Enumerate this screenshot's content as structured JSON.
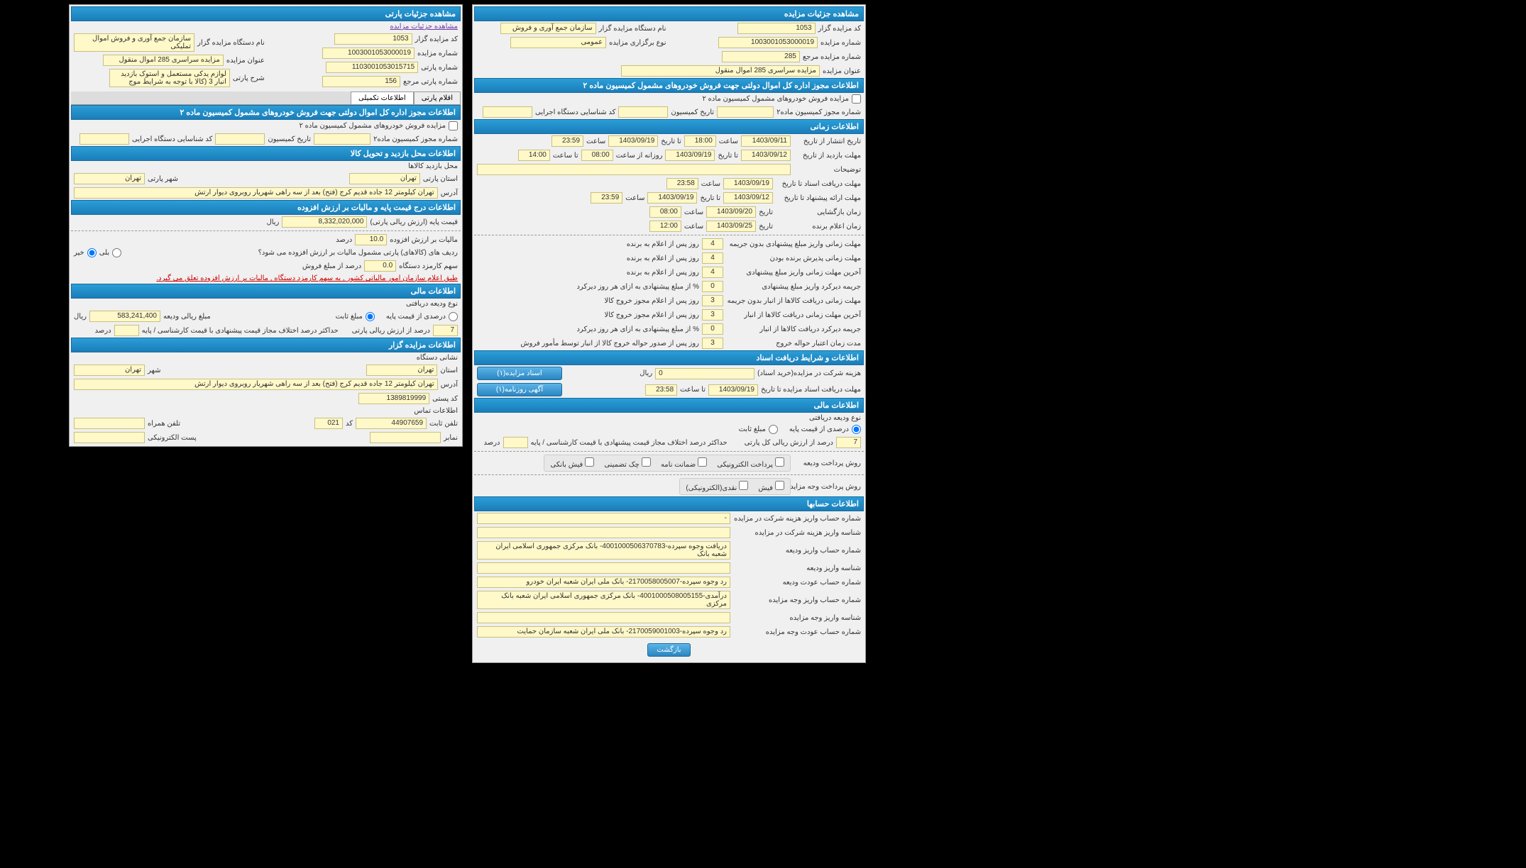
{
  "right": {
    "title": "مشاهده جزئیات مزایده",
    "auctioneer_code": {
      "label": "کد مزایده گزار",
      "value": "1053"
    },
    "auctioneer_name": {
      "label": "نام دستگاه مزایده گزار",
      "value": "سازمان جمع آوری و فروش"
    },
    "auction_number": {
      "label": "شماره مزایده",
      "value": "1003001053000019"
    },
    "auction_type": {
      "label": "نوع برگزاری مزایده",
      "value": "عمومی"
    },
    "ref_number": {
      "label": "شماره مزایده مرجع",
      "value": "285"
    },
    "auction_title": {
      "label": "عنوان مزایده",
      "value": "مزایده سراسری 285 اموال منقول"
    },
    "section_authority": "اطلاعات مجوز اداره کل اموال دولتی جهت فروش خودروهای مشمول کمیسیون ماده ۲",
    "auth_checkbox": "مزایده فروش خودروهای مشمول کمیسیون ماده ۲",
    "auth_num": {
      "label": "شماره مجوز کمیسیون ماده۲",
      "value": ""
    },
    "comm_date": {
      "label": "تاریخ کمیسیون",
      "value": ""
    },
    "exec_code": {
      "label": "کد شناسایی دستگاه اجرایی",
      "value": ""
    },
    "section_time": "اطلاعات زمانی",
    "publish": {
      "label": "تاریخ انتشار از تاریخ",
      "d1": "1403/09/11",
      "t1_label": "ساعت",
      "t1": "18:00"
    },
    "visit": {
      "label": "مهلت بازدید از تاریخ",
      "d1": "1403/09/12",
      "to": "تا تاریخ",
      "d2": "1403/09/19",
      "daily": "روزانه از ساعت",
      "t1": "08:00",
      "to_t": "تا ساعت",
      "t2": "23:59"
    },
    "desc": {
      "label": "توضیحات",
      "value": "14:00"
    },
    "doc_rcv": {
      "label": "مهلت دریافت اسناد تا تاریخ",
      "d": "1403/09/19",
      "t_label": "ساعت",
      "t": "23:58"
    },
    "offer": {
      "label": "مهلت ارائه پیشنهاد تا تاریخ",
      "d1": "1403/09/12",
      "to": "تا تاریخ",
      "d2": "1403/09/19",
      "t_label": "ساعت",
      "t": "23:59"
    },
    "open": {
      "label": "زمان بازگشایی",
      "d": "1403/09/20",
      "t_label": "تاریخ",
      "t": "08:00",
      "t2_label": "ساعت"
    },
    "announce": {
      "label": "زمان اعلام برنده",
      "d": "1403/09/25",
      "t_label": "تاریخ",
      "t": "12:00",
      "t2_label": "ساعت"
    },
    "deadlines": [
      {
        "label": "مهلت زمانی واریز مبلغ پیشنهادی بدون جریمه",
        "v": "4",
        "suffix": "روز پس از اعلام به برنده"
      },
      {
        "label": "مهلت زمانی پذیرش برنده بودن",
        "v": "4",
        "suffix": "روز پس از اعلام به برنده"
      },
      {
        "label": "آخرین مهلت زمانی واریز مبلغ پیشنهادی",
        "v": "4",
        "suffix": "روز پس از اعلام به برنده"
      },
      {
        "label": "جریمه دیرکرد واریز مبلغ پیشنهادی",
        "v": "0",
        "suffix": "% از مبلغ پیشنهادی به ازای هر روز دیرکرد"
      },
      {
        "label": "مهلت زمانی دریافت کالاها از انبار بدون جریمه",
        "v": "3",
        "suffix": "روز پس از اعلام مجوز خروج کالا"
      },
      {
        "label": "آخرین مهلت زمانی دریافت کالاها از انبار",
        "v": "3",
        "suffix": "روز پس از اعلام مجوز خروج کالا"
      },
      {
        "label": "جریمه دیرکرد دریافت کالاها از انبار",
        "v": "0",
        "suffix": "% از مبلغ پیشنهادی به ازای هر روز دیرکرد"
      },
      {
        "label": "مدت زمان اعتبار حواله خروج",
        "v": "3",
        "suffix": "روز پس از صدور حواله خروج کالا از انبار توسط مأمور فروش"
      }
    ],
    "section_docs": "اطلاعات و شرایط دریافت اسناد",
    "doc_cost": {
      "label": "هزینه شرکت در مزایده(خرید اسناد)",
      "value": "0",
      "unit": "ریال"
    },
    "doc_deadline": {
      "label": "مهلت دریافت اسناد مزایده تا تاریخ",
      "d": "1403/09/19",
      "t_label": "تا ساعت",
      "t": "23:58"
    },
    "btn_docs": "اسناد مزایده(۱)",
    "btn_news": "آگهی روزنامه(۱)",
    "section_fin": "اطلاعات مالی",
    "deposit_type": {
      "label": "نوع ودیعه دریافتی"
    },
    "deposit_radio": {
      "opt1": "درصدی از قیمت پایه",
      "opt2": "مبلغ ثابت"
    },
    "deposit_pct": {
      "v": "7",
      "suffix": "درصد از ارزش ریالی کل پارتی",
      "extra": "حداکثر درصد اختلاف مجاز قیمت پیشنهادی با قیمت کارشناسی / پایه",
      "extra_v": "",
      "extra_unit": "درصد"
    },
    "pay_deposit": {
      "label": "روش پرداخت ودیعه"
    },
    "pay_deposit_opts": [
      "پرداخت الکترونیکی",
      "ضمانت نامه",
      "چک تضمینی",
      "فیش بانکی"
    ],
    "pay_auction": {
      "label": "روش پرداخت وجه مزایده"
    },
    "pay_auction_opts": [
      "فیش",
      "نقدی(الکترونیکی)"
    ],
    "section_accounts": "اطلاعات حسابها",
    "accounts": [
      {
        "label": "شماره حساب واریز هزینه شرکت در مزایده",
        "value": "-"
      },
      {
        "label": "شناسه واریز هزینه شرکت در مزایده",
        "value": ""
      },
      {
        "label": "شماره حساب واریز ودیعه",
        "value": "دریافت وجوه سپرده-4001000506370783- بانک مرکزی جمهوری اسلامی ایران شعبه بانک"
      },
      {
        "label": "شناسه واریز ودیعه",
        "value": ""
      },
      {
        "label": "شماره حساب عودت ودیعه",
        "value": "رد وجوه سپرده-2170058005007- بانک ملی ایران شعبه ایران خودرو"
      },
      {
        "label": "شماره حساب واریز وجه مزایده",
        "value": "درآمدی-4001000508005155- بانک مرکزی جمهوری اسلامی ایران شعبه بانک مرکزی"
      },
      {
        "label": "شناسه واریز وجه مزایده",
        "value": ""
      },
      {
        "label": "شماره حساب عودت وجه مزایده",
        "value": "رد وجوه سپرده-2170059001003- بانک ملی ایران شعبه سازمان حمایت"
      }
    ],
    "btn_back": "بازگشت"
  },
  "left": {
    "title": "مشاهده جزئیات پارتی",
    "link": "مشاهده جزئیات مزایده",
    "auctioneer_code": {
      "label": "کد مزایده گزار",
      "value": "1053"
    },
    "auctioneer_name": {
      "label": "نام دستگاه مزایده گزار",
      "value": "سازمان جمع آوری و فروش اموال تملیکی"
    },
    "auction_number": {
      "label": "شماره مزایده",
      "value": "1003001053000019"
    },
    "auction_title": {
      "label": "عنوان مزایده",
      "value": "مزایده سراسری 285 اموال منقول"
    },
    "party_number": {
      "label": "شماره پارتی",
      "value": "1103001053015715"
    },
    "party_desc": {
      "label": "شرح پارتی",
      "value": "لوازم یدکی مستعمل و استوک بازدید انبار 3 (کالا با توجه به شرایط موج"
    },
    "ref_party": {
      "label": "شماره پارتی مرجع",
      "value": "156"
    },
    "tab1": "اقلام پارتی",
    "tab2": "اطلاعات تکمیلی",
    "section_authority": "اطلاعات مجوز اداره کل اموال دولتی جهت فروش خودروهای مشمول کمیسیون ماده ۲",
    "auth_checkbox": "مزایده فروش خودروهای مشمول کمیسیون ماده ۲",
    "auth_num": {
      "label": "شماره مجوز کمیسیون ماده۲",
      "value": ""
    },
    "comm_date": {
      "label": "تاریخ کمیسیون",
      "value": ""
    },
    "exec_code": {
      "label": "کد شناسایی دستگاه اجرایی",
      "value": ""
    },
    "section_visit": "اطلاعات محل بازدید و تحویل کالا",
    "visit_loc": {
      "label": "محل بازدید کالاها"
    },
    "province": {
      "label": "استان پارتی",
      "value": "تهران"
    },
    "city": {
      "label": "شهر پارتی",
      "value": "تهران"
    },
    "addr": {
      "label": "آدرس",
      "value": "تهران کیلومتر 12 جاده قدیم کرج (فتح) بعد از سه راهی شهریار روبروی دیوار ارتش"
    },
    "section_price": "اطلاعات درج قیمت پایه و مالیات بر ارزش افزوده",
    "base_price": {
      "label": "قیمت پایه (ارزش ریالی پارتی)",
      "value": "8,332,020,000",
      "unit": "ریال"
    },
    "vat": {
      "label": "مالیات بر ارزش افزوده",
      "value": "10.0",
      "unit": "درصد"
    },
    "vat_q": {
      "label": "ردیف های (کالاهای) پارتی مشمول مالیات بر ارزش افزوده می شود؟",
      "yes": "بلی",
      "no": "خیر"
    },
    "agent_fee": {
      "label": "سهم کارمزد دستگاه",
      "value": "0.0",
      "unit": "درصد از مبلغ فروش"
    },
    "note": "طبق اعلام سازمان امور مالیاتی کشور , به سهم کارمزد دستگاه , مالیات بر ارزش افزوده تعلق می گیرد.",
    "section_fin": "اطلاعات مالی",
    "deposit_type": {
      "label": "نوع ودیعه دریافتی"
    },
    "deposit_radio": {
      "opt1": "درصدی از قیمت پایه",
      "opt2": "مبلغ ثابت"
    },
    "deposit_amt": {
      "label": "مبلغ ریالی ودیعه",
      "value": "583,241,400",
      "unit": "ریال"
    },
    "deposit_pct": {
      "v": "7",
      "suffix": "درصد از ارزش ریالی پارتی",
      "extra": "حداکثر درصد اختلاف مجاز قیمت پیشنهادی با قیمت کارشناسی / پایه",
      "extra_v": "",
      "extra_unit": "درصد"
    },
    "section_contact": "اطلاعات مزایده گزار",
    "contact_addr": {
      "label": "نشانی دستگاه"
    },
    "c_province": {
      "label": "استان",
      "value": "تهران"
    },
    "c_city": {
      "label": "شهر",
      "value": "تهران"
    },
    "c_addr": {
      "label": "آدرس",
      "value": "تهران کیلومتر 12 جاده قدیم کرج (فتح) بعد از سه راهی شهریار روبروی دیوار ارتش"
    },
    "c_zip": {
      "label": "کد پستی",
      "value": "1389819999"
    },
    "c_contact": {
      "label": "اطلاعات تماس"
    },
    "phone": {
      "label": "تلفن ثابت",
      "value": "44907659",
      "code_label": "کد",
      "code": "021"
    },
    "mobile": {
      "label": "تلفن همراه",
      "value": ""
    },
    "fax": {
      "label": "نمابر",
      "value": ""
    },
    "email": {
      "label": "پست الکترونیکی",
      "value": ""
    }
  }
}
